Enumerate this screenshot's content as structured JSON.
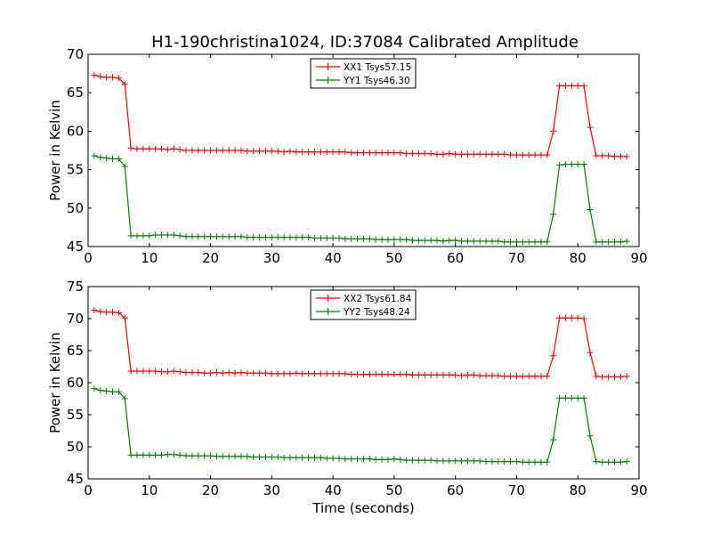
{
  "title": "H1-190christina1024, ID:37084 Calibrated Amplitude",
  "chart_data": [
    {
      "type": "line",
      "ylabel": "Power in Kelvin",
      "xlabel": "",
      "xlim": [
        0,
        90
      ],
      "ylim": [
        45,
        70
      ],
      "xticks": [
        "0",
        "10",
        "20",
        "30",
        "40",
        "50",
        "60",
        "70",
        "80",
        "90"
      ],
      "yticks": [
        "45",
        "50",
        "55",
        "60",
        "65",
        "70"
      ],
      "legend_position": "top-center",
      "series": [
        {
          "name": "XX1 Tsys57.15",
          "color": "#ff0000",
          "x": [
            1,
            2,
            3,
            4,
            5,
            6,
            7,
            8,
            9,
            10,
            11,
            12,
            13,
            14,
            15,
            16,
            17,
            18,
            19,
            20,
            21,
            22,
            23,
            24,
            25,
            26,
            27,
            28,
            29,
            30,
            31,
            32,
            33,
            34,
            35,
            36,
            37,
            38,
            39,
            40,
            41,
            42,
            43,
            44,
            45,
            46,
            47,
            48,
            49,
            50,
            51,
            52,
            53,
            54,
            55,
            56,
            57,
            58,
            59,
            60,
            61,
            62,
            63,
            64,
            65,
            66,
            67,
            68,
            69,
            70,
            71,
            72,
            73,
            74,
            75,
            76,
            77,
            78,
            79,
            80,
            81,
            82,
            83,
            84,
            85,
            86,
            87,
            88
          ],
          "y": [
            67.3,
            67.1,
            67.0,
            67.0,
            66.9,
            66.1,
            57.8,
            57.7,
            57.7,
            57.7,
            57.7,
            57.7,
            57.6,
            57.7,
            57.6,
            57.5,
            57.5,
            57.5,
            57.5,
            57.5,
            57.5,
            57.5,
            57.5,
            57.5,
            57.5,
            57.4,
            57.4,
            57.4,
            57.4,
            57.4,
            57.4,
            57.3,
            57.4,
            57.3,
            57.3,
            57.3,
            57.3,
            57.3,
            57.3,
            57.3,
            57.3,
            57.3,
            57.2,
            57.2,
            57.2,
            57.2,
            57.2,
            57.2,
            57.2,
            57.2,
            57.2,
            57.1,
            57.1,
            57.1,
            57.1,
            57.1,
            57.0,
            57.0,
            57.1,
            57.0,
            57.0,
            57.0,
            57.0,
            57.0,
            57.0,
            57.0,
            57.0,
            57.0,
            56.9,
            56.9,
            56.9,
            56.9,
            56.9,
            56.9,
            56.9,
            60.0,
            65.9,
            65.9,
            65.9,
            65.9,
            65.9,
            60.5,
            56.8,
            56.8,
            56.8,
            56.7,
            56.7,
            56.7
          ]
        },
        {
          "name": "YY1 Tsys46.30",
          "color": "#008000",
          "x": [
            1,
            2,
            3,
            4,
            5,
            6,
            7,
            8,
            9,
            10,
            11,
            12,
            13,
            14,
            15,
            16,
            17,
            18,
            19,
            20,
            21,
            22,
            23,
            24,
            25,
            26,
            27,
            28,
            29,
            30,
            31,
            32,
            33,
            34,
            35,
            36,
            37,
            38,
            39,
            40,
            41,
            42,
            43,
            44,
            45,
            46,
            47,
            48,
            49,
            50,
            51,
            52,
            53,
            54,
            55,
            56,
            57,
            58,
            59,
            60,
            61,
            62,
            63,
            64,
            65,
            66,
            67,
            68,
            69,
            70,
            71,
            72,
            73,
            74,
            75,
            76,
            77,
            78,
            79,
            80,
            81,
            82,
            83,
            84,
            85,
            86,
            87,
            88
          ],
          "y": [
            56.8,
            56.6,
            56.5,
            56.4,
            56.4,
            55.4,
            46.4,
            46.4,
            46.4,
            46.4,
            46.5,
            46.5,
            46.5,
            46.5,
            46.4,
            46.3,
            46.3,
            46.3,
            46.3,
            46.3,
            46.3,
            46.3,
            46.3,
            46.3,
            46.3,
            46.2,
            46.2,
            46.2,
            46.2,
            46.2,
            46.2,
            46.2,
            46.2,
            46.2,
            46.2,
            46.2,
            46.1,
            46.1,
            46.1,
            46.1,
            46.1,
            46.0,
            46.0,
            46.0,
            46.0,
            46.0,
            45.9,
            45.9,
            45.9,
            45.9,
            45.9,
            45.9,
            45.8,
            45.8,
            45.8,
            45.8,
            45.8,
            45.7,
            45.8,
            45.8,
            45.7,
            45.7,
            45.7,
            45.7,
            45.7,
            45.7,
            45.7,
            45.6,
            45.6,
            45.6,
            45.6,
            45.6,
            45.6,
            45.6,
            45.6,
            49.2,
            55.6,
            55.7,
            55.7,
            55.7,
            55.7,
            49.8,
            45.6,
            45.6,
            45.6,
            45.6,
            45.6,
            45.7
          ]
        }
      ]
    },
    {
      "type": "line",
      "ylabel": "Power in Kelvin",
      "xlabel": "Time (seconds)",
      "xlim": [
        0,
        90
      ],
      "ylim": [
        45,
        75
      ],
      "xticks": [
        "0",
        "10",
        "20",
        "30",
        "40",
        "50",
        "60",
        "70",
        "80",
        "90"
      ],
      "yticks": [
        "45",
        "50",
        "55",
        "60",
        "65",
        "70",
        "75"
      ],
      "legend_position": "top-center",
      "series": [
        {
          "name": "XX2 Tsys61.84",
          "color": "#ff0000",
          "x": [
            1,
            2,
            3,
            4,
            5,
            6,
            7,
            8,
            9,
            10,
            11,
            12,
            13,
            14,
            15,
            16,
            17,
            18,
            19,
            20,
            21,
            22,
            23,
            24,
            25,
            26,
            27,
            28,
            29,
            30,
            31,
            32,
            33,
            34,
            35,
            36,
            37,
            38,
            39,
            40,
            41,
            42,
            43,
            44,
            45,
            46,
            47,
            48,
            49,
            50,
            51,
            52,
            53,
            54,
            55,
            56,
            57,
            58,
            59,
            60,
            61,
            62,
            63,
            64,
            65,
            66,
            67,
            68,
            69,
            70,
            71,
            72,
            73,
            74,
            75,
            76,
            77,
            78,
            79,
            80,
            81,
            82,
            83,
            84,
            85,
            86,
            87,
            88
          ],
          "y": [
            71.3,
            71.1,
            71.0,
            71.0,
            70.9,
            70.1,
            61.8,
            61.8,
            61.8,
            61.8,
            61.8,
            61.7,
            61.7,
            61.8,
            61.7,
            61.6,
            61.6,
            61.6,
            61.5,
            61.5,
            61.6,
            61.5,
            61.6,
            61.5,
            61.6,
            61.5,
            61.5,
            61.5,
            61.5,
            61.4,
            61.4,
            61.4,
            61.4,
            61.5,
            61.4,
            61.4,
            61.4,
            61.4,
            61.4,
            61.4,
            61.4,
            61.4,
            61.3,
            61.3,
            61.3,
            61.3,
            61.3,
            61.3,
            61.3,
            61.3,
            61.3,
            61.3,
            61.2,
            61.2,
            61.2,
            61.2,
            61.2,
            61.2,
            61.2,
            61.2,
            61.1,
            61.2,
            61.2,
            61.1,
            61.1,
            61.1,
            61.1,
            61.0,
            61.0,
            61.0,
            61.0,
            61.0,
            61.0,
            61.0,
            61.0,
            64.2,
            70.1,
            70.1,
            70.1,
            70.1,
            70.0,
            64.7,
            61.0,
            60.9,
            60.9,
            60.9,
            60.9,
            61.0
          ]
        },
        {
          "name": "YY2 Tsys48.24",
          "color": "#008000",
          "x": [
            1,
            2,
            3,
            4,
            5,
            6,
            7,
            8,
            9,
            10,
            11,
            12,
            13,
            14,
            15,
            16,
            17,
            18,
            19,
            20,
            21,
            22,
            23,
            24,
            25,
            26,
            27,
            28,
            29,
            30,
            31,
            32,
            33,
            34,
            35,
            36,
            37,
            38,
            39,
            40,
            41,
            42,
            43,
            44,
            45,
            46,
            47,
            48,
            49,
            50,
            51,
            52,
            53,
            54,
            55,
            56,
            57,
            58,
            59,
            60,
            61,
            62,
            63,
            64,
            65,
            66,
            67,
            68,
            69,
            70,
            71,
            72,
            73,
            74,
            75,
            76,
            77,
            78,
            79,
            80,
            81,
            82,
            83,
            84,
            85,
            86,
            87,
            88
          ],
          "y": [
            59.1,
            58.8,
            58.7,
            58.6,
            58.6,
            57.5,
            48.7,
            48.7,
            48.7,
            48.7,
            48.7,
            48.7,
            48.8,
            48.8,
            48.7,
            48.6,
            48.6,
            48.6,
            48.6,
            48.6,
            48.5,
            48.5,
            48.5,
            48.5,
            48.5,
            48.5,
            48.4,
            48.4,
            48.4,
            48.4,
            48.4,
            48.3,
            48.3,
            48.3,
            48.3,
            48.3,
            48.3,
            48.3,
            48.2,
            48.2,
            48.2,
            48.1,
            48.1,
            48.1,
            48.1,
            48.1,
            48.0,
            48.0,
            48.0,
            48.1,
            48.0,
            47.9,
            47.9,
            47.9,
            47.9,
            47.9,
            47.8,
            47.8,
            47.8,
            47.8,
            47.8,
            47.8,
            47.8,
            47.8,
            47.7,
            47.7,
            47.7,
            47.7,
            47.7,
            47.7,
            47.6,
            47.6,
            47.6,
            47.6,
            47.6,
            51.1,
            57.6,
            57.6,
            57.6,
            57.6,
            57.6,
            51.7,
            47.7,
            47.6,
            47.6,
            47.6,
            47.6,
            47.7
          ]
        }
      ]
    }
  ]
}
